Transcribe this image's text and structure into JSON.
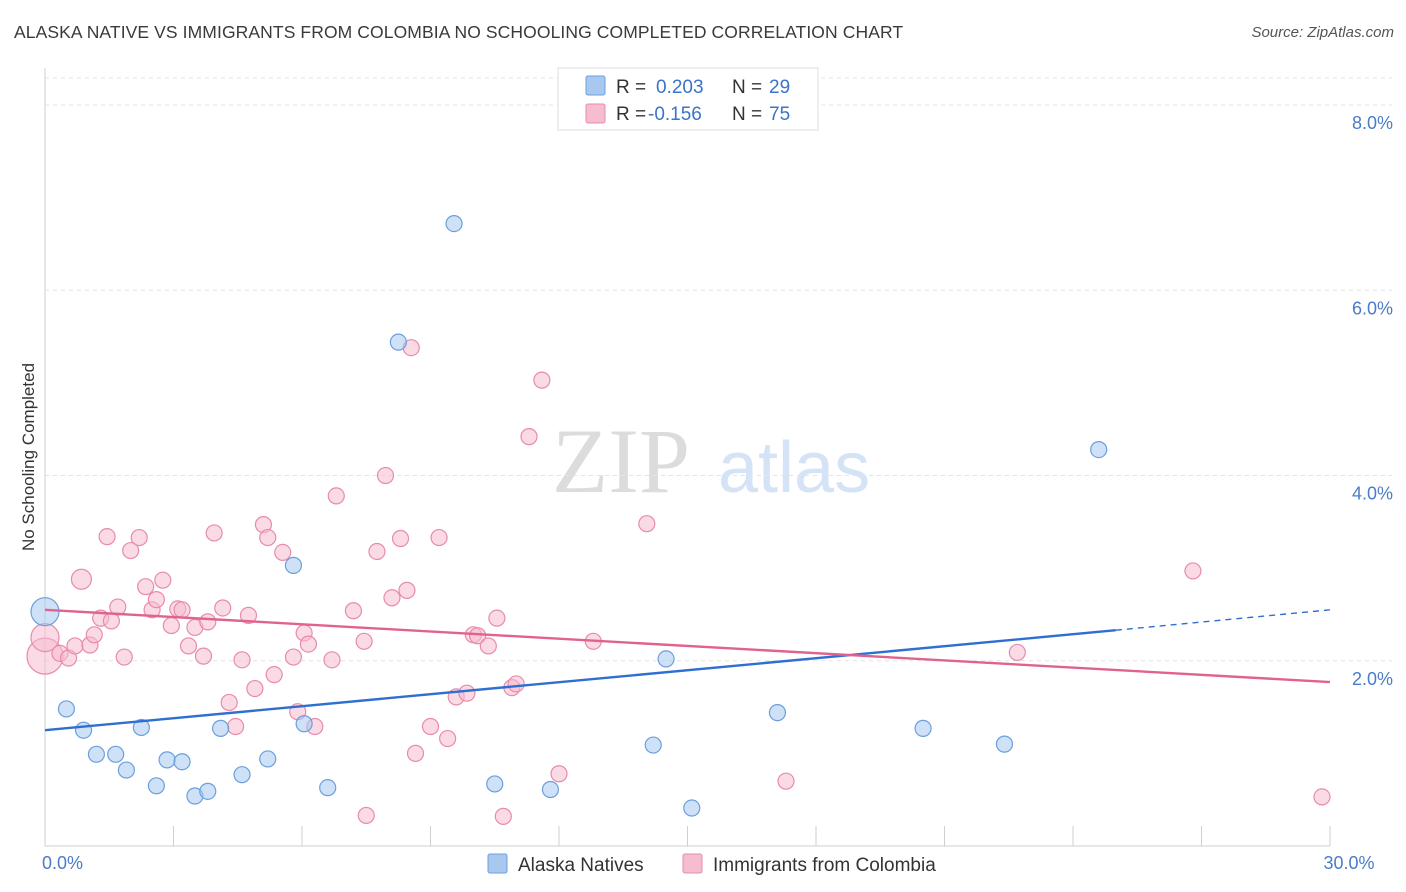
{
  "title": "ALASKA NATIVE VS IMMIGRANTS FROM COLOMBIA NO SCHOOLING COMPLETED CORRELATION CHART",
  "source": "Source: ZipAtlas.com",
  "watermark": {
    "zip": "ZIP",
    "atlas": "atlas"
  },
  "chart_data": {
    "type": "scatter",
    "ylabel": "No Schooling Completed",
    "xlim": [
      0,
      30
    ],
    "ylim": [
      0,
      8.4
    ],
    "x_tick_labels": [
      {
        "value": 0,
        "label": "0.0%"
      },
      {
        "value": 30,
        "label": "30.0%"
      }
    ],
    "y_tick_labels": [
      {
        "value": 2,
        "label": "2.0%"
      },
      {
        "value": 4,
        "label": "4.0%"
      },
      {
        "value": 6,
        "label": "6.0%"
      },
      {
        "value": 8,
        "label": "8.0%"
      }
    ],
    "grid": true,
    "legend_position": "top-center",
    "series": [
      {
        "name": "Alaska Natives",
        "color": "#a8c8f0",
        "stroke": "#6b9fdc",
        "line_color": "#2f6fd0",
        "R_label": "R =",
        "R": "0.203",
        "N_label": "N =",
        "N": "29",
        "trend": {
          "x0": 0,
          "y0": 1.25,
          "x1": 25,
          "y1": 2.33,
          "dash_x1": 30,
          "dash_y1": 2.55
        },
        "points": [
          [
            0.0,
            2.53,
            14
          ],
          [
            0.5,
            1.48,
            8
          ],
          [
            0.9,
            1.25,
            8
          ],
          [
            1.2,
            0.99,
            8
          ],
          [
            1.65,
            0.99,
            8
          ],
          [
            1.9,
            0.82,
            8
          ],
          [
            2.25,
            1.28,
            8
          ],
          [
            2.6,
            0.65,
            8
          ],
          [
            2.85,
            0.93,
            8
          ],
          [
            3.2,
            0.91,
            8
          ],
          [
            3.5,
            0.54,
            8
          ],
          [
            3.8,
            0.59,
            8
          ],
          [
            4.1,
            1.27,
            8
          ],
          [
            4.6,
            0.77,
            8
          ],
          [
            5.2,
            0.94,
            8
          ],
          [
            5.8,
            3.03,
            8
          ],
          [
            6.05,
            1.32,
            8
          ],
          [
            6.6,
            0.63,
            8
          ],
          [
            8.25,
            5.44,
            8
          ],
          [
            9.55,
            6.72,
            8
          ],
          [
            10.5,
            0.67,
            8
          ],
          [
            11.8,
            0.61,
            8
          ],
          [
            14.2,
            1.09,
            8
          ],
          [
            14.5,
            2.02,
            8
          ],
          [
            15.1,
            0.41,
            8
          ],
          [
            17.1,
            1.44,
            8
          ],
          [
            20.5,
            1.27,
            8
          ],
          [
            22.4,
            1.1,
            8
          ],
          [
            24.6,
            4.28,
            8
          ]
        ]
      },
      {
        "name": "Immigrants from Colombia",
        "color": "#f6bcd0",
        "stroke": "#e88bab",
        "line_color": "#e0638f",
        "R_label": "R =",
        "R": "-0.156",
        "N_label": "N =",
        "N": "75",
        "trend": {
          "x0": 0,
          "y0": 2.55,
          "x1": 30,
          "y1": 1.77
        },
        "points": [
          [
            0.0,
            2.05,
            18
          ],
          [
            0.0,
            2.25,
            14
          ],
          [
            0.35,
            2.08,
            8
          ],
          [
            0.55,
            2.03,
            8
          ],
          [
            0.7,
            2.16,
            8
          ],
          [
            0.85,
            2.88,
            10
          ],
          [
            1.05,
            2.17,
            8
          ],
          [
            1.15,
            2.28,
            8
          ],
          [
            1.3,
            2.46,
            8
          ],
          [
            1.45,
            3.34,
            8
          ],
          [
            1.55,
            2.43,
            8
          ],
          [
            1.7,
            2.58,
            8
          ],
          [
            1.85,
            2.04,
            8
          ],
          [
            2.0,
            3.19,
            8
          ],
          [
            2.2,
            3.33,
            8
          ],
          [
            2.35,
            2.8,
            8
          ],
          [
            2.5,
            2.55,
            8
          ],
          [
            2.6,
            2.66,
            8
          ],
          [
            2.75,
            2.87,
            8
          ],
          [
            2.95,
            2.38,
            8
          ],
          [
            3.1,
            2.56,
            8
          ],
          [
            3.2,
            2.55,
            8
          ],
          [
            3.35,
            2.16,
            8
          ],
          [
            3.5,
            2.36,
            8
          ],
          [
            3.7,
            2.05,
            8
          ],
          [
            3.8,
            2.42,
            8
          ],
          [
            3.95,
            3.38,
            8
          ],
          [
            4.15,
            2.57,
            8
          ],
          [
            4.3,
            1.55,
            8
          ],
          [
            4.45,
            1.29,
            8
          ],
          [
            4.6,
            2.01,
            8
          ],
          [
            4.75,
            2.49,
            8
          ],
          [
            4.9,
            1.7,
            8
          ],
          [
            5.1,
            3.47,
            8
          ],
          [
            5.2,
            3.33,
            8
          ],
          [
            5.35,
            1.85,
            8
          ],
          [
            5.55,
            3.17,
            8
          ],
          [
            5.8,
            2.04,
            8
          ],
          [
            5.9,
            1.45,
            8
          ],
          [
            6.05,
            2.3,
            8
          ],
          [
            6.15,
            2.18,
            8
          ],
          [
            6.3,
            1.29,
            8
          ],
          [
            6.7,
            2.01,
            8
          ],
          [
            6.8,
            3.78,
            8
          ],
          [
            7.2,
            2.54,
            8
          ],
          [
            7.45,
            2.21,
            8
          ],
          [
            7.5,
            0.33,
            8
          ],
          [
            7.75,
            3.18,
            8
          ],
          [
            7.95,
            4.0,
            8
          ],
          [
            8.1,
            2.68,
            8
          ],
          [
            8.3,
            3.32,
            8
          ],
          [
            8.45,
            2.76,
            8
          ],
          [
            8.55,
            5.38,
            8
          ],
          [
            8.65,
            1.0,
            8
          ],
          [
            9.0,
            1.29,
            8
          ],
          [
            9.2,
            3.33,
            8
          ],
          [
            9.4,
            1.16,
            8
          ],
          [
            9.6,
            1.61,
            8
          ],
          [
            9.85,
            1.65,
            8
          ],
          [
            10.0,
            2.28,
            8
          ],
          [
            10.1,
            2.27,
            8
          ],
          [
            10.35,
            2.16,
            8
          ],
          [
            10.55,
            2.46,
            8
          ],
          [
            10.7,
            0.32,
            8
          ],
          [
            10.9,
            1.71,
            8
          ],
          [
            11.0,
            1.75,
            8
          ],
          [
            11.3,
            4.42,
            8
          ],
          [
            11.6,
            5.03,
            8
          ],
          [
            12.0,
            0.78,
            8
          ],
          [
            12.8,
            2.21,
            8
          ],
          [
            14.05,
            3.48,
            8
          ],
          [
            17.3,
            0.7,
            8
          ],
          [
            22.7,
            2.09,
            8
          ],
          [
            26.8,
            2.97,
            8
          ],
          [
            31.0,
            0.53,
            8
          ]
        ]
      }
    ]
  }
}
